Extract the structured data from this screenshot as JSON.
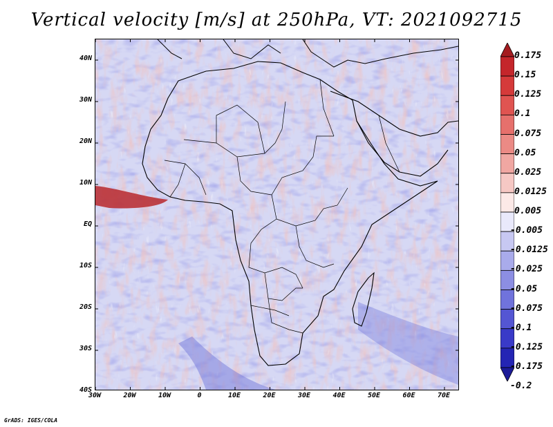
{
  "title": "Vertical velocity [m/s] at 250hPa, VT: 2021092715",
  "footer": "GrADS: IGES/COLA",
  "map": {
    "region": "Africa",
    "lat_labels": [
      "40N",
      "30N",
      "20N",
      "10N",
      "EQ",
      "10S",
      "20S",
      "30S",
      "40S"
    ],
    "lon_labels": [
      "30W",
      "20W",
      "10W",
      "0",
      "10E",
      "20E",
      "30E",
      "40E",
      "50E",
      "60E",
      "70E"
    ],
    "lat_range": [
      -40,
      45
    ],
    "lon_range": [
      -30,
      75
    ]
  },
  "colorbar": {
    "labels": [
      "0.175",
      "0.15",
      "0.125",
      "0.1",
      "0.075",
      "0.05",
      "0.025",
      "0.0125",
      "0.005",
      "-0.005",
      "-0.0125",
      "-0.025",
      "-0.05",
      "-0.075",
      "-0.1",
      "-0.125",
      "-0.175",
      "-0.2"
    ],
    "colors": [
      "#a41c20",
      "#c4262b",
      "#d53a3a",
      "#e05451",
      "#e6706c",
      "#eb8a85",
      "#f0a7a2",
      "#f6c8c4",
      "#fce9e7",
      "#e9e9fb",
      "#c7c8f2",
      "#a9abeb",
      "#8c8ee3",
      "#7073dc",
      "#5456d3",
      "#393ac8",
      "#2425b4",
      "#1c1b98"
    ]
  },
  "features": {
    "red_jet": "tropical easterly jet (west Africa)",
    "country_borders": true
  }
}
